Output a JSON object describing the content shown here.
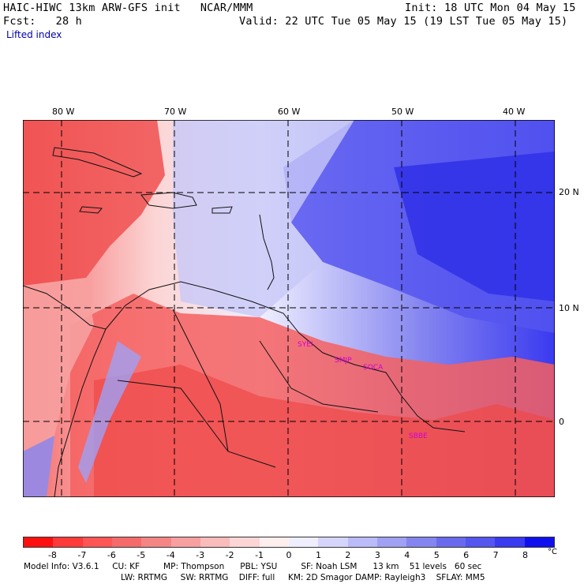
{
  "header": {
    "title": "HAIC-HIWC 13km ARW-GFS init   NCAR/MMM",
    "init": "Init: 18 UTC Mon 04 May 15",
    "fcst": "Fcst:   28 h",
    "valid": "Valid: 22 UTC Tue 05 May 15 (19 LST Tue 05 May 15)",
    "field": "Lifted index"
  },
  "map": {
    "lon_labels": [
      "80 W",
      "70 W",
      "60 W",
      "50 W",
      "40 W"
    ],
    "lat_labels": [
      "20 N",
      "10 N",
      "0"
    ],
    "stations": [
      "SYEI",
      "SMJP",
      "SOCA",
      "SBBE"
    ]
  },
  "colorbar": {
    "ticks": [
      "-8",
      "-7",
      "-6",
      "-5",
      "-4",
      "-3",
      "-2",
      "-1",
      "0",
      "1",
      "2",
      "3",
      "4",
      "5",
      "6",
      "7",
      "8"
    ],
    "unit": "°C",
    "colors": [
      "#ff1010",
      "#ff3a3a",
      "#ff5555",
      "#f56a6a",
      "#f58585",
      "#f7a0a0",
      "#fabbbb",
      "#fcd5d5",
      "#ffeeee",
      "#eeeeff",
      "#d5d5fc",
      "#bbbbfa",
      "#a0a0f5",
      "#8585f0",
      "#6a6aee",
      "#5555f0",
      "#3a3af0",
      "#1010ee"
    ]
  },
  "footer": {
    "line1": "Model Info: V3.6.1     CU: KF         MP: Thompson      PBL: YSU         SF: Noah LSM      13 km    51 levels   60 sec",
    "line2": "LW: RRTMG     SW: RRTMG    DIFF: full     KM: 2D Smagor DAMP: Rayleigh3    SFLAY: MM5"
  }
}
